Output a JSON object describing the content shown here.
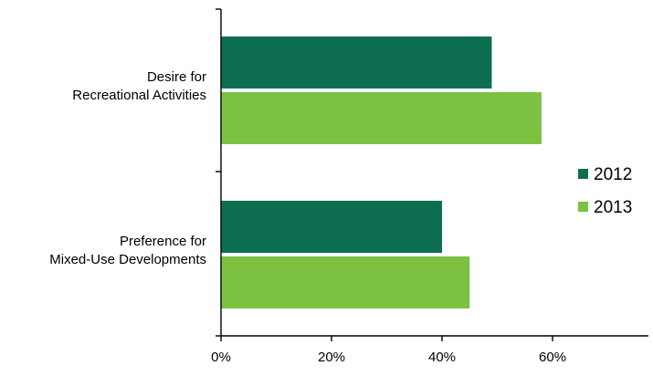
{
  "chart_data": {
    "type": "bar",
    "orientation": "horizontal",
    "categories": [
      [
        "Desire for",
        "Recreational Activities"
      ],
      [
        "Preference for",
        "Mixed-Use Developments"
      ]
    ],
    "series": [
      {
        "name": "2012",
        "values": [
          49,
          40
        ],
        "color": "#0e6e52"
      },
      {
        "name": "2013",
        "values": [
          58,
          45
        ],
        "color": "#7cc142"
      }
    ],
    "xticks": [
      "0%",
      "20%",
      "40%",
      "60%"
    ],
    "xlim": [
      0,
      77
    ],
    "xlabel": "",
    "ylabel": "",
    "title": "",
    "grid": false,
    "legend_position": "right"
  }
}
